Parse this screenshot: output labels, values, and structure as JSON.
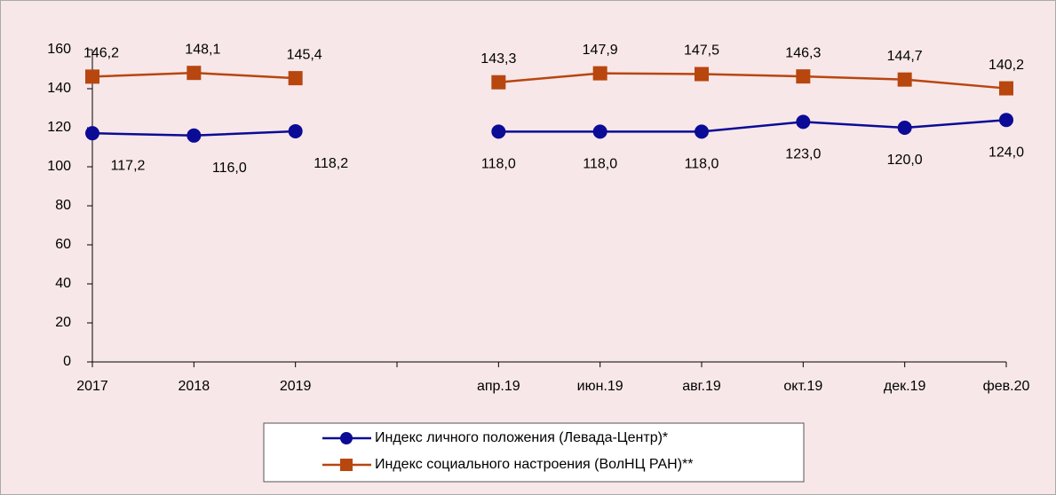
{
  "chart_data": {
    "type": "line",
    "categories": [
      "2017",
      "2018",
      "2019",
      null,
      "апр.19",
      "июн.19",
      "авг.19",
      "окт.19",
      "дек.19",
      "фев.20"
    ],
    "series": [
      {
        "name": "Индекс личного положения (Левада-Центр)*",
        "color": "#0b0b96",
        "marker": "circle",
        "values": [
          117.2,
          116.0,
          118.2,
          null,
          118.0,
          118.0,
          118.0,
          123.0,
          120.0,
          124.0
        ],
        "value_labels": [
          "117,2",
          "116,0",
          "118,2",
          null,
          "118,0",
          "118,0",
          "118,0",
          "123,0",
          "120,0",
          "124,0"
        ]
      },
      {
        "name": "Индекс социального настроения (ВолНЦ РАН)**",
        "color": "#b8460f",
        "marker": "square",
        "values": [
          146.2,
          148.1,
          145.4,
          null,
          143.3,
          147.9,
          147.5,
          146.3,
          144.7,
          140.2
        ],
        "value_labels": [
          "146,2",
          "148,1",
          "145,4",
          null,
          "143,3",
          "147,9",
          "147,5",
          "146,3",
          "144,7",
          "140,2"
        ]
      }
    ],
    "ylim": [
      0,
      160
    ],
    "yticks": [
      0,
      20,
      40,
      60,
      80,
      100,
      120,
      140,
      160
    ],
    "grid": false,
    "legend": "bottom"
  }
}
